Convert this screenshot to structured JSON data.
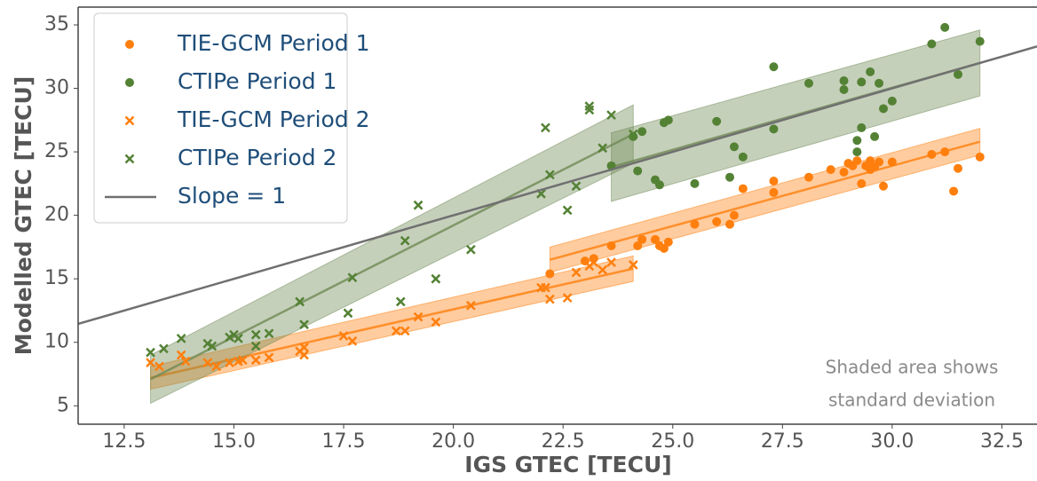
{
  "chart_data": {
    "type": "scatter",
    "xlabel": "IGS GTEC [TECU]",
    "ylabel": "Modelled GTEC [TECU]",
    "xlim": [
      11.45,
      33.3
    ],
    "ylim": [
      3.55,
      36.4
    ],
    "xticks": [
      12.5,
      {
        "value": 15,
        "label": "15.0"
      },
      17.5,
      {
        "value": 20,
        "label": "20.0"
      },
      22.5,
      {
        "value": 25,
        "label": "25.0"
      },
      27.5,
      {
        "value": 30,
        "label": "30.0"
      },
      32.5
    ],
    "yticks": [
      5,
      10,
      15,
      20,
      25,
      30,
      35
    ],
    "legend": "upper left",
    "annotation": [
      "Shaded area shows",
      "standard deviation"
    ],
    "series": [
      {
        "name": "TIE-GCM Period 1",
        "color": "#ff7f0e",
        "marker": "o",
        "x": [
          22.2,
          23.0,
          23.2,
          23.6,
          24.2,
          24.3,
          24.6,
          24.7,
          24.8,
          24.9,
          25.5,
          26.0,
          26.3,
          26.4,
          26.6,
          27.3,
          27.3,
          28.1,
          28.6,
          28.9,
          29.0,
          29.1,
          29.2,
          29.3,
          29.4,
          29.5,
          29.5,
          29.6,
          29.7,
          29.8,
          30.0,
          30.9,
          31.2,
          31.4,
          31.5,
          32.0
        ],
        "values": [
          15.4,
          16.4,
          16.6,
          17.6,
          17.6,
          18.1,
          18.1,
          17.6,
          17.4,
          17.9,
          19.3,
          19.5,
          19.3,
          20.0,
          22.1,
          21.8,
          22.7,
          23.0,
          23.6,
          23.4,
          24.1,
          23.9,
          24.3,
          22.5,
          23.9,
          24.3,
          23.6,
          23.8,
          24.2,
          22.3,
          24.2,
          24.8,
          25.0,
          21.9,
          23.7,
          24.6
        ]
      },
      {
        "name": "CTIPe Period 1",
        "color": "#548235",
        "marker": "o",
        "x": [
          23.6,
          24.1,
          24.2,
          24.3,
          24.6,
          24.7,
          24.8,
          24.9,
          25.5,
          26.0,
          26.3,
          26.4,
          26.6,
          27.3,
          27.3,
          28.1,
          28.9,
          28.9,
          29.2,
          29.2,
          29.3,
          29.3,
          29.5,
          29.6,
          29.7,
          29.8,
          30.0,
          30.9,
          31.2,
          31.5,
          32.0
        ],
        "values": [
          23.9,
          26.2,
          23.5,
          26.6,
          22.8,
          22.4,
          27.3,
          27.5,
          22.5,
          27.4,
          23.0,
          25.4,
          24.6,
          31.7,
          26.8,
          30.4,
          29.9,
          30.6,
          25.0,
          25.9,
          26.9,
          30.5,
          31.3,
          26.2,
          30.4,
          28.4,
          29.0,
          33.5,
          34.8,
          31.1,
          33.7
        ]
      },
      {
        "name": "TIE-GCM Period 2",
        "color": "#ff7f0e",
        "marker": "x",
        "x": [
          13.1,
          13.3,
          13.8,
          13.9,
          14.4,
          14.6,
          14.9,
          15.1,
          15.2,
          15.5,
          15.8,
          16.5,
          16.6,
          16.6,
          17.5,
          17.7,
          18.7,
          18.9,
          19.2,
          19.6,
          20.4,
          22.0,
          22.1,
          22.2,
          22.6,
          22.8,
          23.1,
          23.2,
          23.4,
          23.6,
          24.1
        ],
        "values": [
          8.4,
          8.1,
          9.0,
          8.5,
          8.4,
          8.1,
          8.4,
          8.5,
          8.6,
          8.6,
          8.8,
          9.3,
          9.0,
          9.6,
          10.5,
          10.1,
          10.9,
          10.9,
          12.0,
          11.6,
          12.9,
          14.3,
          14.3,
          13.4,
          13.5,
          15.5,
          16.0,
          16.3,
          15.7,
          16.3,
          16.1
        ]
      },
      {
        "name": "CTIPe Period 2",
        "color": "#548235",
        "marker": "x",
        "x": [
          13.1,
          13.4,
          13.8,
          14.4,
          14.5,
          14.9,
          15.0,
          15.1,
          15.5,
          15.5,
          15.8,
          16.5,
          16.6,
          17.6,
          17.7,
          18.8,
          18.9,
          19.2,
          19.6,
          20.4,
          22.0,
          22.1,
          22.2,
          22.6,
          22.8,
          23.1,
          23.1,
          23.4,
          23.6,
          24.1
        ],
        "values": [
          9.2,
          9.5,
          10.3,
          9.9,
          9.7,
          10.4,
          10.6,
          10.3,
          10.6,
          9.7,
          10.7,
          13.2,
          11.4,
          12.3,
          15.1,
          13.2,
          18.0,
          20.8,
          15.0,
          17.3,
          21.7,
          26.9,
          23.2,
          20.4,
          22.3,
          28.6,
          28.3,
          25.3,
          27.9,
          26.4
        ]
      },
      {
        "name": "Slope = 1",
        "color": "#707070",
        "marker": "line",
        "x": [
          11.45,
          33.3
        ],
        "values": [
          11.45,
          33.3
        ]
      }
    ],
    "fits": [
      {
        "color": "#ff7f0e",
        "x": [
          22.2,
          32.0
        ],
        "values": [
          16.5,
          25.8
        ],
        "std": [
          1.0,
          1.05
        ]
      },
      {
        "color": "#6f8a55",
        "x": [
          23.6,
          32.0
        ],
        "values": [
          23.8,
          32.0
        ],
        "std": [
          2.7,
          2.6
        ]
      },
      {
        "color": "#ff7f0e",
        "x": [
          13.1,
          24.1
        ],
        "values": [
          7.2,
          15.8
        ],
        "std": [
          0.9,
          1.0
        ]
      },
      {
        "color": "#6f8a55",
        "x": [
          13.1,
          24.1
        ],
        "values": [
          7.1,
          26.4
        ],
        "std": [
          1.9,
          2.3
        ]
      }
    ]
  }
}
